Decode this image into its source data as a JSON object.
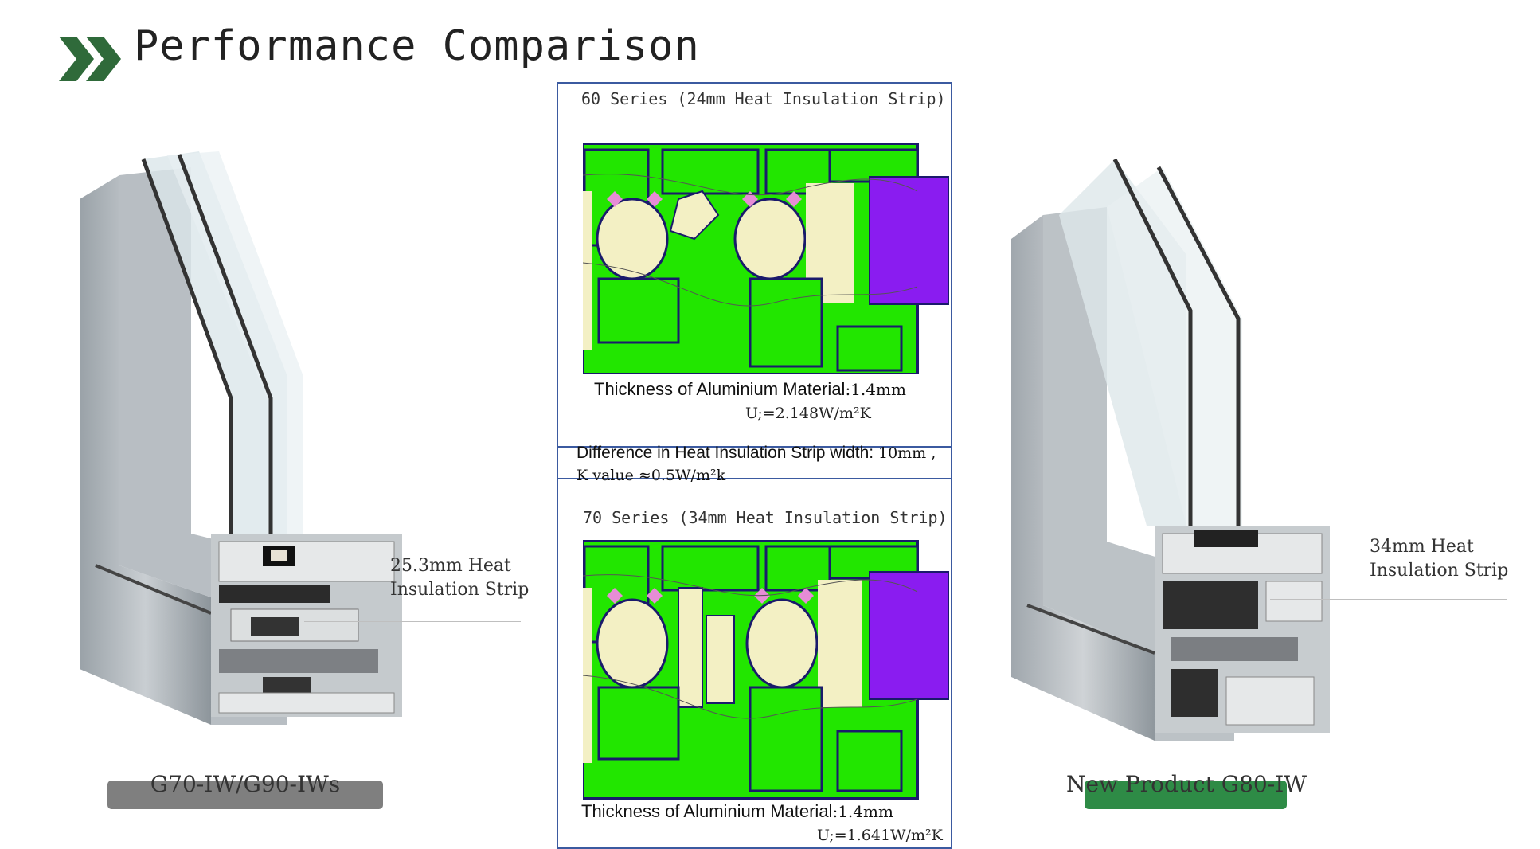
{
  "header": {
    "title": "Performance Comparison"
  },
  "left_product": {
    "callout_line1": "25.3mm Heat",
    "callout_line2": "Insulation Strip",
    "label": "G70-IW/G90-IWs",
    "label_bar_color": "#7f7f7f"
  },
  "right_product": {
    "callout_line1": "34mm Heat",
    "callout_line2": "Insulation Strip",
    "label": "New Product G80-IW",
    "label_bar_color": "#2e8b46"
  },
  "center": {
    "top": {
      "series": "60 Series (24mm Heat Insulation Strip)",
      "thickness_label": "Thickness of Aluminium Material",
      "thickness_value": ":1.4mm",
      "u_value": "U;=2.148W/m²K"
    },
    "difference": {
      "label": "Difference in Heat Insulation Strip width:",
      "value": "10mm ,",
      "k_value": "K value ≈0.5W/m²k"
    },
    "bottom": {
      "series": "70 Series (34mm Heat Insulation Strip)",
      "thickness_label": "Thickness of Aluminium Material",
      "thickness_value": ":1.4mm",
      "u_value": "U;=1.641W/m²K"
    }
  },
  "colors": {
    "accent": "#2f6a3a",
    "panel_border": "#3b5aa0",
    "thermal_green": "#22e600",
    "thermal_purple": "#8a1cf0",
    "thermal_pink": "#e68cd6",
    "thermal_cream": "#f3f0c4",
    "frame_navy": "#1a1a6b"
  }
}
